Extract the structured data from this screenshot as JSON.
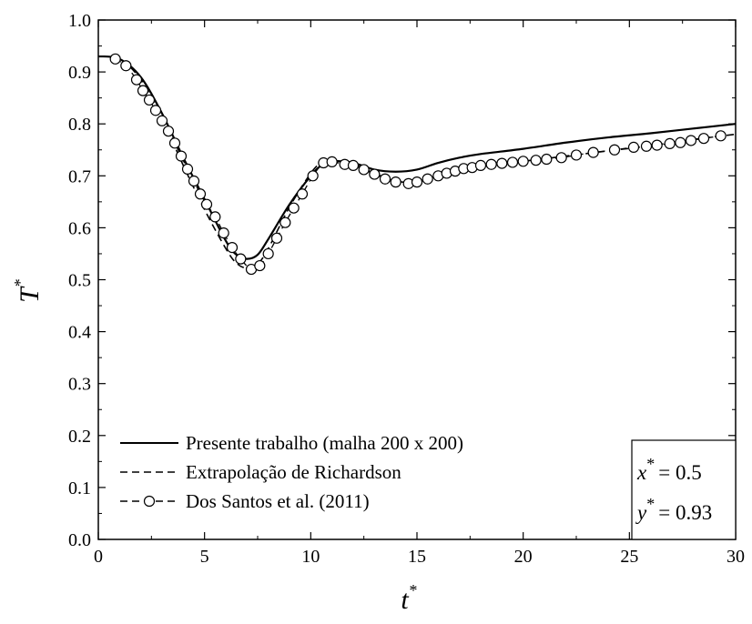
{
  "chart_data": {
    "type": "line",
    "xlabel": "t",
    "xlabel_sup": "*",
    "ylabel": "T",
    "ylabel_sup": "*",
    "xlim": [
      0,
      30
    ],
    "ylim": [
      0.0,
      1.0
    ],
    "x_ticks": [
      "0",
      "5",
      "10",
      "15",
      "20",
      "25",
      "30"
    ],
    "y_ticks": [
      "0.0",
      "0.1",
      "0.2",
      "0.3",
      "0.4",
      "0.5",
      "0.6",
      "0.7",
      "0.8",
      "0.9",
      "1.0"
    ],
    "grid": false,
    "legend_position": "bottom-left",
    "annotation": {
      "x_label": "x",
      "x_value": "= 0.5",
      "y_label": "y",
      "y_value": "= 0.93",
      "sup": "*"
    },
    "series": [
      {
        "name": "Presente trabalho (malha 200 x 200)",
        "style": "solid",
        "x": [
          0,
          1,
          2,
          3,
          4,
          5,
          6,
          6.5,
          7,
          7.5,
          8,
          9,
          10,
          10.5,
          11,
          12,
          13,
          14,
          15,
          16,
          17,
          18,
          20,
          22,
          24,
          26,
          28,
          30
        ],
        "y": [
          0.93,
          0.925,
          0.89,
          0.82,
          0.735,
          0.655,
          0.575,
          0.548,
          0.54,
          0.548,
          0.578,
          0.645,
          0.7,
          0.72,
          0.728,
          0.725,
          0.712,
          0.708,
          0.712,
          0.725,
          0.735,
          0.742,
          0.752,
          0.764,
          0.774,
          0.782,
          0.791,
          0.8
        ]
      },
      {
        "name": "Extrapolação de Richardson",
        "style": "dashed",
        "x": [
          0,
          1,
          2,
          3,
          4,
          5,
          6,
          6.5,
          7,
          7.5,
          8,
          9,
          10,
          10.5,
          11,
          12,
          13,
          14,
          15,
          16,
          17,
          18,
          20,
          22,
          24,
          26,
          28,
          30
        ],
        "y": [
          0.93,
          0.925,
          0.885,
          0.81,
          0.72,
          0.635,
          0.56,
          0.532,
          0.522,
          0.53,
          0.56,
          0.64,
          0.705,
          0.725,
          0.73,
          0.722,
          0.705,
          0.69,
          0.688,
          0.7,
          0.71,
          0.718,
          0.728,
          0.738,
          0.748,
          0.758,
          0.77,
          0.78
        ]
      },
      {
        "name": "Dos Santos et al. (2011)",
        "style": "dashed-markers",
        "x": [
          0.8,
          1.3,
          1.8,
          2.1,
          2.4,
          2.7,
          3.0,
          3.3,
          3.6,
          3.9,
          4.2,
          4.5,
          4.8,
          5.1,
          5.5,
          5.9,
          6.3,
          6.7,
          7.2,
          7.6,
          8.0,
          8.4,
          8.8,
          9.2,
          9.6,
          10.1,
          10.6,
          11.0,
          11.6,
          12.0,
          12.5,
          13.0,
          13.5,
          14.0,
          14.6,
          15.0,
          15.5,
          16.0,
          16.4,
          16.8,
          17.2,
          17.6,
          18.0,
          18.5,
          19.0,
          19.5,
          20.0,
          20.6,
          21.1,
          21.8,
          22.5,
          23.3,
          24.3,
          25.2,
          25.8,
          26.3,
          26.9,
          27.4,
          27.9,
          28.5,
          29.3
        ],
        "y": [
          0.925,
          0.912,
          0.885,
          0.864,
          0.846,
          0.826,
          0.806,
          0.786,
          0.763,
          0.738,
          0.713,
          0.69,
          0.665,
          0.645,
          0.621,
          0.59,
          0.562,
          0.54,
          0.52,
          0.527,
          0.55,
          0.58,
          0.61,
          0.638,
          0.665,
          0.7,
          0.725,
          0.727,
          0.722,
          0.72,
          0.712,
          0.703,
          0.694,
          0.688,
          0.685,
          0.688,
          0.694,
          0.7,
          0.705,
          0.709,
          0.714,
          0.716,
          0.72,
          0.722,
          0.724,
          0.726,
          0.728,
          0.73,
          0.732,
          0.735,
          0.74,
          0.745,
          0.75,
          0.755,
          0.757,
          0.759,
          0.762,
          0.764,
          0.768,
          0.772,
          0.777
        ]
      }
    ]
  }
}
